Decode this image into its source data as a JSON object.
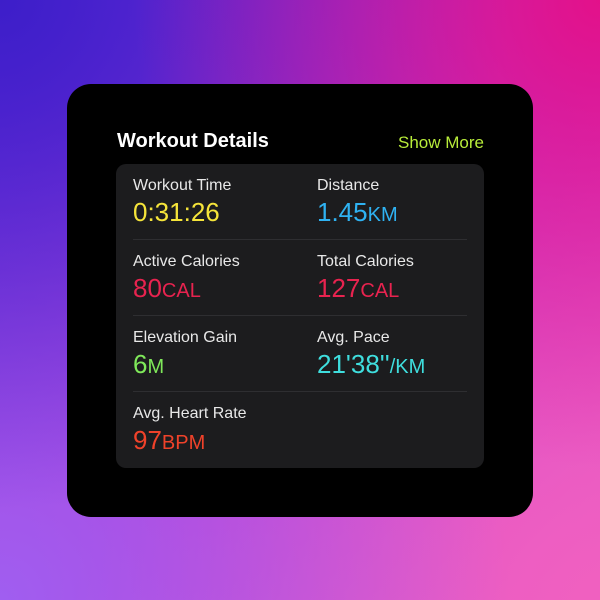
{
  "header": {
    "title": "Workout Details",
    "show_more": "Show More"
  },
  "colors": {
    "accent": "#b8ec3a",
    "time": "#f5e43a",
    "distance": "#2fb2f2",
    "calories": "#e8234f",
    "elevation": "#7fe85a",
    "pace": "#3fdede",
    "heart": "#f0422a"
  },
  "metrics": [
    {
      "label": "Workout Time",
      "value": "0:31:26",
      "unit": ""
    },
    {
      "label": "Distance",
      "value": "1.45",
      "unit": "KM"
    },
    {
      "label": "Active Calories",
      "value": "80",
      "unit": "CAL"
    },
    {
      "label": "Total Calories",
      "value": "127",
      "unit": "CAL"
    },
    {
      "label": "Elevation Gain",
      "value": "6",
      "unit": "M"
    },
    {
      "label": "Avg. Pace",
      "value": "21'38''",
      "unit": "/KM"
    },
    {
      "label": "Avg. Heart Rate",
      "value": "97",
      "unit": "BPM"
    }
  ]
}
